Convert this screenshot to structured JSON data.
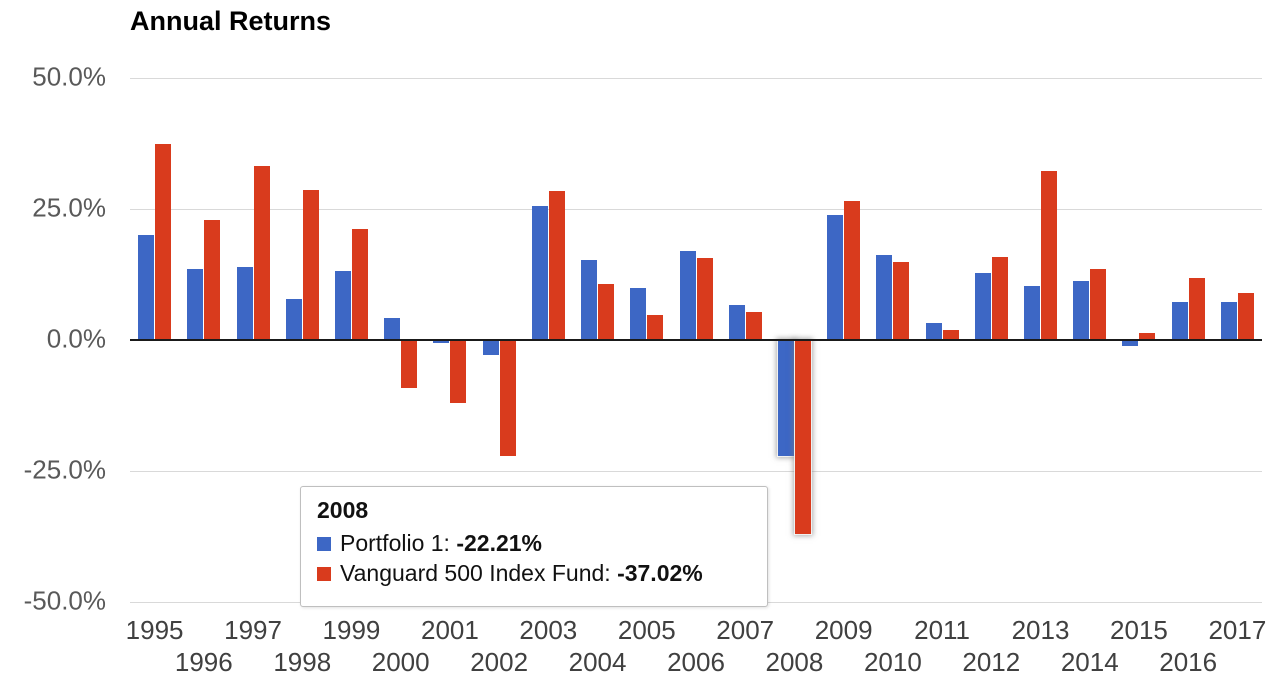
{
  "title": "Annual Returns",
  "colors": {
    "portfolio1": "#3d67c5",
    "vanguard": "#d93b1d",
    "grid": "#d9d9d9",
    "zero_line": "#1a1a1a",
    "y_label": "#595959",
    "x_label": "#404040"
  },
  "y_axis": {
    "tick_labels": [
      "50.0%",
      "25.0%",
      "0.0%",
      "-25.0%",
      "-50.0%"
    ],
    "tick_values": [
      50,
      25,
      0,
      -25,
      -50
    ]
  },
  "tooltip": {
    "year": "2008",
    "rows": [
      {
        "label": "Portfolio 1: ",
        "value": "-22.21%",
        "color": "#3d67c5"
      },
      {
        "label": "Vanguard 500 Index Fund: ",
        "value": "-37.02%",
        "color": "#d93b1d"
      }
    ]
  },
  "chart_data": {
    "type": "bar",
    "title": "Annual Returns",
    "categories": [
      1995,
      1996,
      1997,
      1998,
      1999,
      2000,
      2001,
      2002,
      2003,
      2004,
      2005,
      2006,
      2007,
      2008,
      2009,
      2010,
      2011,
      2012,
      2013,
      2014,
      2015,
      2016,
      2017
    ],
    "series": [
      {
        "name": "Portfolio 1",
        "color": "#3d67c5",
        "values": [
          20.0,
          13.5,
          14.0,
          7.8,
          13.1,
          4.2,
          -0.6,
          -2.9,
          25.6,
          15.2,
          9.9,
          17.0,
          6.6,
          -22.21,
          23.8,
          16.2,
          3.2,
          12.8,
          10.4,
          11.3,
          -1.1,
          7.3,
          7.3
        ]
      },
      {
        "name": "Vanguard 500 Index Fund",
        "color": "#d93b1d",
        "values": [
          37.4,
          22.9,
          33.2,
          28.6,
          21.1,
          -9.1,
          -12.0,
          -22.2,
          28.5,
          10.7,
          4.8,
          15.6,
          5.4,
          -37.02,
          26.5,
          14.9,
          2.0,
          15.8,
          32.2,
          13.5,
          1.3,
          11.8,
          9.0
        ]
      }
    ],
    "ylabel": "",
    "xlabel": "",
    "ylim": [
      -50,
      50
    ],
    "y_ticks": [
      50,
      25,
      0,
      -25,
      -50
    ],
    "grid": true,
    "legend_position": "none",
    "highlighted_category": 2008
  }
}
